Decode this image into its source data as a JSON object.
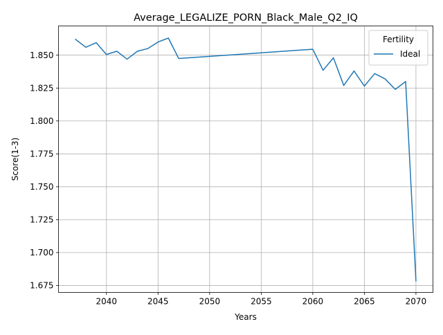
{
  "chart_data": {
    "type": "line",
    "title": "Average_LEGALIZE_PORN_Black_Male_Q2_IQ",
    "xlabel": "Years",
    "ylabel": "Score(1-3)",
    "xlim": [
      2035.35,
      2071.65
    ],
    "ylim": [
      1.6697,
      1.8722
    ],
    "xticks": [
      2040,
      2045,
      2050,
      2055,
      2060,
      2065,
      2070
    ],
    "yticks": [
      1.675,
      1.7,
      1.725,
      1.75,
      1.775,
      1.8,
      1.825,
      1.85
    ],
    "grid": true,
    "legend": {
      "title": "Fertility",
      "position": "top-right"
    },
    "series": [
      {
        "name": "Ideal",
        "color": "#1f77b4",
        "x": [
          2037,
          2038,
          2039,
          2040,
          2041,
          2042,
          2043,
          2044,
          2045,
          2046,
          2047,
          2060,
          2061,
          2062,
          2063,
          2064,
          2065,
          2066,
          2067,
          2068,
          2069,
          2070
        ],
        "y": [
          1.862,
          1.856,
          1.8595,
          1.8505,
          1.853,
          1.847,
          1.853,
          1.855,
          1.86,
          1.863,
          1.8475,
          1.8545,
          1.8385,
          1.848,
          1.827,
          1.838,
          1.8265,
          1.836,
          1.832,
          1.824,
          1.83,
          1.6785
        ]
      }
    ]
  }
}
